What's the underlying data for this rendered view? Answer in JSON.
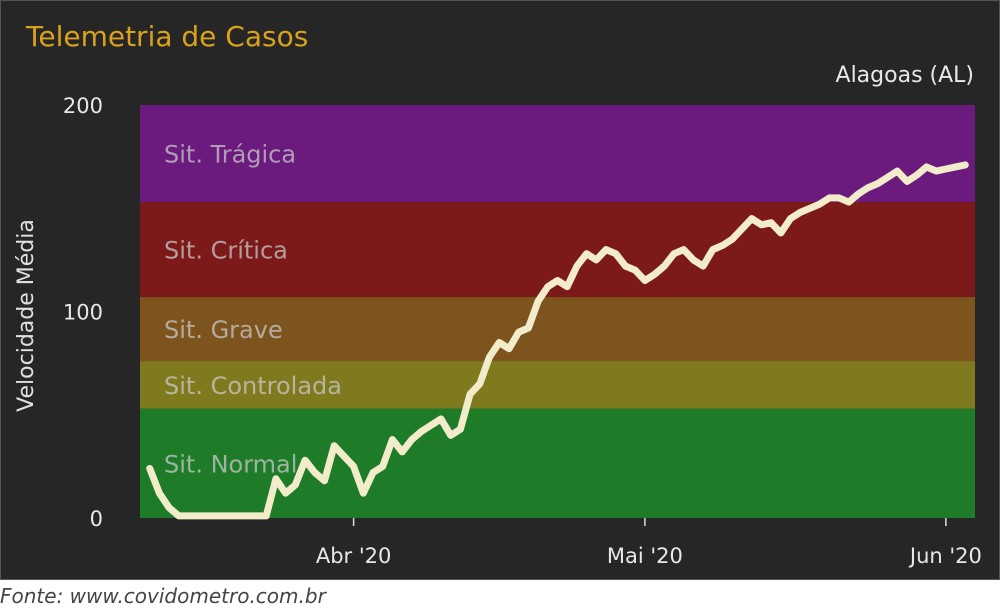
{
  "title": "Telemetria de Casos",
  "region": "Alagoas (AL)",
  "source": "Fonte: www.covidometro.com.br",
  "chart_data": {
    "type": "line",
    "title": "Telemetria de Casos",
    "ylabel": "Velocidade Média",
    "xlabel": "",
    "ylim": [
      0,
      200
    ],
    "yticks": [
      0,
      100,
      200
    ],
    "xlim": [
      "2020-03-10",
      "2020-06-04"
    ],
    "xticks": [
      {
        "date": "2020-04-01",
        "label": "Abr '20"
      },
      {
        "date": "2020-05-01",
        "label": "Mai '20"
      },
      {
        "date": "2020-06-01",
        "label": "Jun '20"
      }
    ],
    "bands": [
      {
        "label": "Sit. Normal",
        "from": 0,
        "to": 53,
        "color": "#1e7b28"
      },
      {
        "label": "Sit. Controlada",
        "from": 53,
        "to": 76,
        "color": "#7f7a1e"
      },
      {
        "label": "Sit. Grave",
        "from": 76,
        "to": 107,
        "color": "#7d541e"
      },
      {
        "label": "Sit. Crítica",
        "from": 107,
        "to": 153,
        "color": "#7c1919"
      },
      {
        "label": "Sit. Trágica",
        "from": 153,
        "to": 200,
        "color": "#6b1a7e"
      }
    ],
    "series": [
      {
        "color": "#f3eccb",
        "x": [
          "2020-03-11",
          "2020-03-12",
          "2020-03-13",
          "2020-03-14",
          "2020-03-15",
          "2020-03-16",
          "2020-03-17",
          "2020-03-18",
          "2020-03-19",
          "2020-03-20",
          "2020-03-21",
          "2020-03-22",
          "2020-03-23",
          "2020-03-24",
          "2020-03-25",
          "2020-03-26",
          "2020-03-27",
          "2020-03-28",
          "2020-03-29",
          "2020-03-30",
          "2020-03-31",
          "2020-04-01",
          "2020-04-02",
          "2020-04-03",
          "2020-04-04",
          "2020-04-05",
          "2020-04-06",
          "2020-04-07",
          "2020-04-08",
          "2020-04-09",
          "2020-04-10",
          "2020-04-11",
          "2020-04-12",
          "2020-04-13",
          "2020-04-14",
          "2020-04-15",
          "2020-04-16",
          "2020-04-17",
          "2020-04-18",
          "2020-04-19",
          "2020-04-20",
          "2020-04-21",
          "2020-04-22",
          "2020-04-23",
          "2020-04-24",
          "2020-04-25",
          "2020-04-26",
          "2020-04-27",
          "2020-04-28",
          "2020-04-29",
          "2020-04-30",
          "2020-05-01",
          "2020-05-02",
          "2020-05-03",
          "2020-05-04",
          "2020-05-05",
          "2020-05-06",
          "2020-05-07",
          "2020-05-08",
          "2020-05-09",
          "2020-05-10",
          "2020-05-11",
          "2020-05-12",
          "2020-05-13",
          "2020-05-14",
          "2020-05-15",
          "2020-05-16",
          "2020-05-17",
          "2020-05-18",
          "2020-05-19",
          "2020-05-20",
          "2020-05-21",
          "2020-05-22",
          "2020-05-23",
          "2020-05-24",
          "2020-05-25",
          "2020-05-26",
          "2020-05-27",
          "2020-05-28",
          "2020-05-29",
          "2020-05-30",
          "2020-05-31",
          "2020-06-01",
          "2020-06-02",
          "2020-06-03"
        ],
        "values": [
          24,
          12,
          5,
          1,
          1,
          1,
          1,
          1,
          1,
          1,
          1,
          1,
          1,
          19,
          12,
          16,
          28,
          22,
          18,
          35,
          30,
          25,
          12,
          22,
          25,
          38,
          32,
          38,
          42,
          45,
          48,
          40,
          43,
          60,
          65,
          78,
          85,
          82,
          90,
          92,
          105,
          112,
          115,
          112,
          122,
          128,
          125,
          130,
          128,
          122,
          120,
          115,
          118,
          122,
          128,
          130,
          125,
          122,
          130,
          132,
          135,
          140,
          145,
          142,
          143,
          138,
          145,
          148,
          150,
          152,
          155,
          155,
          153,
          157,
          160,
          162,
          165,
          168,
          163,
          166,
          170,
          168,
          169,
          170,
          171
        ]
      }
    ]
  }
}
